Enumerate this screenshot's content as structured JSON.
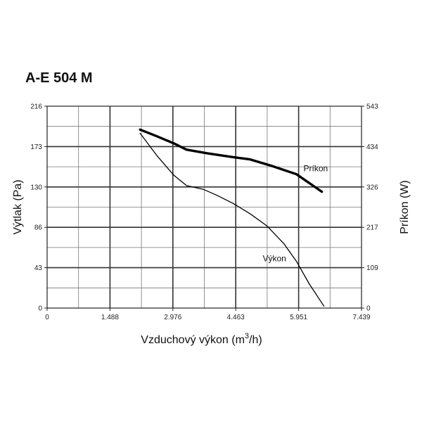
{
  "chart_data": {
    "type": "line",
    "title": "A-E 504 M",
    "xlabel": "Vzduchový výkon (m",
    "xlabel_sup": "3",
    "xlabel_tail": "/h)",
    "ylabel_left": "Výtlak (Pa)",
    "ylabel_right": "Príkon (W)",
    "xlim": [
      0,
      7.439
    ],
    "ylim_left": [
      0,
      216
    ],
    "ylim_right": [
      0,
      543
    ],
    "x_ticks": [
      "0",
      "1.488",
      "2.976",
      "4.463",
      "5.951",
      "7.439"
    ],
    "y_ticks_left": [
      "0",
      "43",
      "86",
      "130",
      "173",
      "216"
    ],
    "y_ticks_right": [
      "0",
      "109",
      "217",
      "326",
      "434",
      "543"
    ],
    "grid": true,
    "series": [
      {
        "name": "Výkon",
        "axis": "left",
        "x": [
          2.2,
          2.6,
          3.0,
          3.3,
          3.7,
          4.0,
          4.4,
          4.8,
          5.2,
          5.6,
          5.9,
          6.2,
          6.55
        ],
        "y": [
          187,
          163,
          142,
          131,
          127,
          121,
          112,
          101,
          88,
          69,
          50,
          26,
          2
        ]
      },
      {
        "name": "Príkon",
        "axis": "right",
        "x": [
          2.2,
          2.6,
          3.0,
          3.3,
          3.8,
          4.4,
          4.8,
          5.3,
          5.9,
          6.5
        ],
        "y": [
          480,
          462,
          443,
          426,
          416,
          406,
          400,
          383,
          360,
          313
        ]
      }
    ],
    "annotations": [
      {
        "text": "Príkon",
        "series": "Príkon"
      },
      {
        "text": "Výkon",
        "series": "Výkon"
      }
    ]
  }
}
